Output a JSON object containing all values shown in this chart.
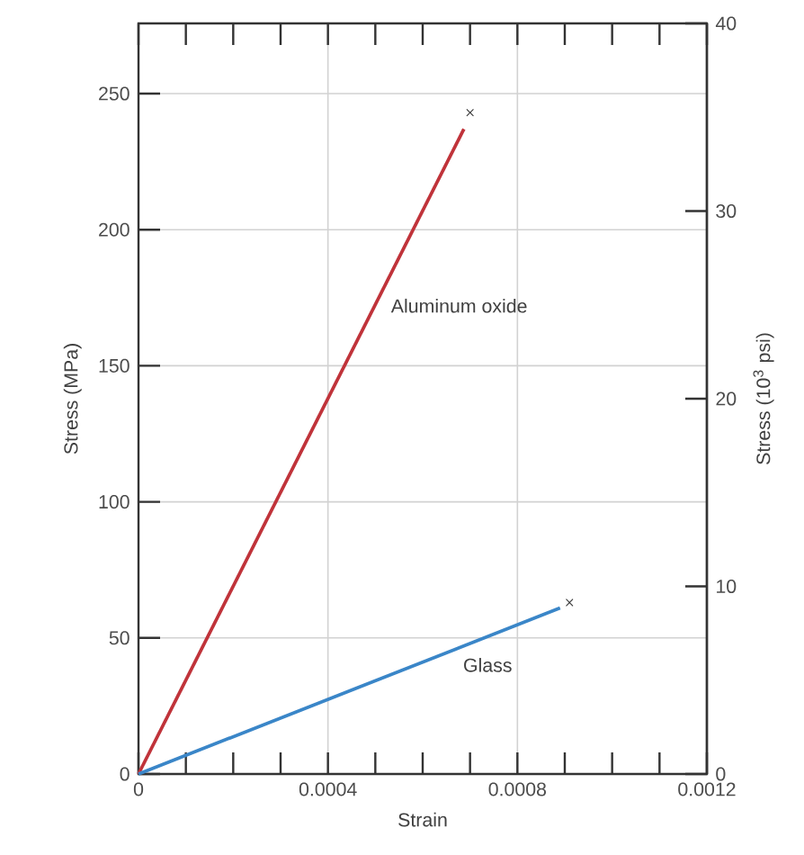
{
  "chart_data": {
    "type": "line",
    "xlabel": "Strain",
    "ylabel": "Stress (MPa)",
    "y2label": "Stress (10$^{3}$ psi)",
    "xlim": [
      0,
      0.0012
    ],
    "ylim": [
      0,
      275.8
    ],
    "y2lim": [
      0,
      40
    ],
    "xticks": [
      0,
      {
        "value": 0.0001,
        "label": null
      },
      {
        "value": 0.0002,
        "label": null
      },
      {
        "value": 0.0003,
        "label": null
      },
      {
        "value": 0.0004,
        "label": "0.0004"
      },
      {
        "value": 0.0005,
        "label": null
      },
      {
        "value": 0.0006,
        "label": null
      },
      {
        "value": 0.0007,
        "label": null
      },
      {
        "value": 0.0008,
        "label": "0.0008"
      },
      {
        "value": 0.0009,
        "label": null
      },
      {
        "value": 0.001,
        "label": null
      },
      {
        "value": 0.0011,
        "label": null
      },
      {
        "value": 0.0012,
        "label": "0.0012"
      }
    ],
    "yticks": [
      0,
      50,
      100,
      150,
      200,
      250
    ],
    "y2ticks": [
      0,
      10,
      20,
      30,
      40
    ],
    "grid": true,
    "series": [
      {
        "name": "Aluminum oxide",
        "color": "#c0333a",
        "x": [
          0,
          0.000687
        ],
        "values": [
          0,
          237
        ]
      },
      {
        "name": "Glass",
        "color": "#3a86c8",
        "x": [
          0,
          0.00089
        ],
        "values": [
          0,
          61
        ]
      },
      {
        "type": "scatter",
        "marker": "cross",
        "color": "#333333",
        "x": [
          0.0007,
          0.00091
        ],
        "values": [
          243,
          63
        ]
      }
    ]
  }
}
